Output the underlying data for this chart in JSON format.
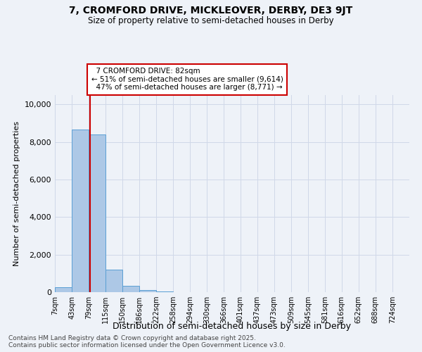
{
  "title": "7, CROMFORD DRIVE, MICKLEOVER, DERBY, DE3 9JT",
  "subtitle": "Size of property relative to semi-detached houses in Derby",
  "xlabel": "Distribution of semi-detached houses by size in Derby",
  "ylabel": "Number of semi-detached properties",
  "property_size": 82,
  "property_label": "7 CROMFORD DRIVE: 82sqm",
  "pct_smaller": 51,
  "count_smaller": 9614,
  "pct_larger": 47,
  "count_larger": 8771,
  "bin_edges": [
    7,
    43,
    79,
    115,
    150,
    186,
    222,
    258,
    294,
    330,
    366,
    401,
    437,
    473,
    509,
    545,
    581,
    616,
    652,
    688,
    724
  ],
  "bar_heights": [
    250,
    8650,
    8400,
    1200,
    350,
    100,
    50,
    10,
    5,
    5,
    5,
    5,
    5,
    5,
    5,
    5,
    5,
    5,
    5,
    5
  ],
  "bar_color": "#adc8e6",
  "bar_edge_color": "#5a9fd4",
  "grid_color": "#d0d8e8",
  "background_color": "#eef2f8",
  "red_line_color": "#cc0000",
  "annotation_box_color": "#cc0000",
  "ylim": [
    0,
    10500
  ],
  "yticks": [
    0,
    2000,
    4000,
    6000,
    8000,
    10000
  ],
  "footer_line1": "Contains HM Land Registry data © Crown copyright and database right 2025.",
  "footer_line2": "Contains public sector information licensed under the Open Government Licence v3.0."
}
